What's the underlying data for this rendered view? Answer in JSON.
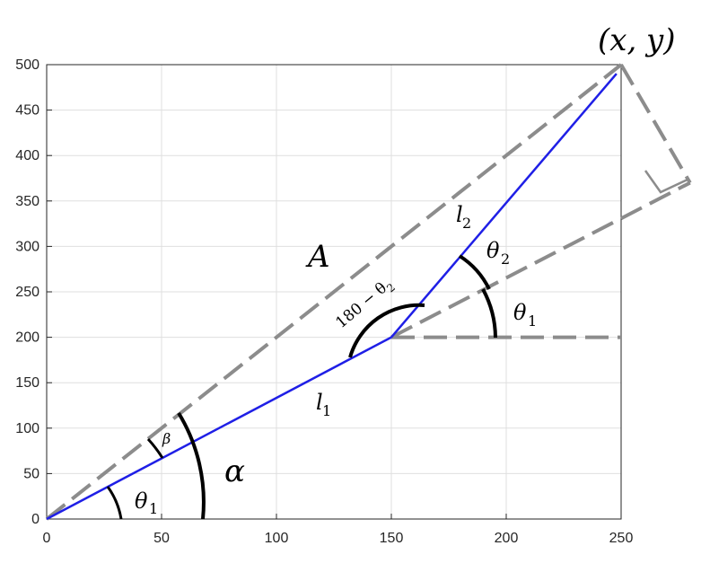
{
  "chart_data": {
    "type": "line",
    "xlim": [
      0,
      250
    ],
    "ylim": [
      0,
      500
    ],
    "grid": true,
    "xticks": [
      "0",
      "50",
      "100",
      "150",
      "200",
      "250"
    ],
    "yticks": [
      "0",
      "50",
      "100",
      "150",
      "200",
      "250",
      "300",
      "350",
      "400",
      "450",
      "500"
    ],
    "series": [
      {
        "values": [
          [
            0,
            0
          ],
          [
            150,
            200
          ],
          [
            248,
            490
          ]
        ],
        "color": "#1f1fe6"
      }
    ],
    "reference_lines": [
      {
        "from": [
          0,
          0
        ],
        "to": [
          250,
          500
        ],
        "style": "dashed",
        "color": "#8c8c8c"
      },
      {
        "from": [
          150,
          200
        ],
        "to": [
          250,
          200
        ],
        "style": "dashed",
        "color": "#8c8c8c"
      },
      {
        "from": [
          150,
          200
        ],
        "to": [
          280,
          370
        ],
        "style": "dashed",
        "color": "#8c8c8c"
      },
      {
        "from": [
          250,
          500
        ],
        "to": [
          280,
          370
        ],
        "style": "dashed",
        "color": "#8c8c8c"
      }
    ]
  },
  "labels": {
    "point": "(x, y)",
    "A": "A",
    "l1_base": "l",
    "l1_sub": "1",
    "l2_base": "l",
    "l2_sub": "2",
    "alpha": "α",
    "beta": "β",
    "theta1_base": "θ",
    "theta1_sub": "1",
    "theta2_base": "θ",
    "theta2_sub": "2",
    "supp_base": "180 − θ",
    "supp_sub": "2"
  },
  "colors": {
    "arm": "#1f1fe6",
    "dashed": "#8c8c8c",
    "arc": "#000000",
    "grid": "#dfdfdf",
    "axis": "#262626"
  }
}
